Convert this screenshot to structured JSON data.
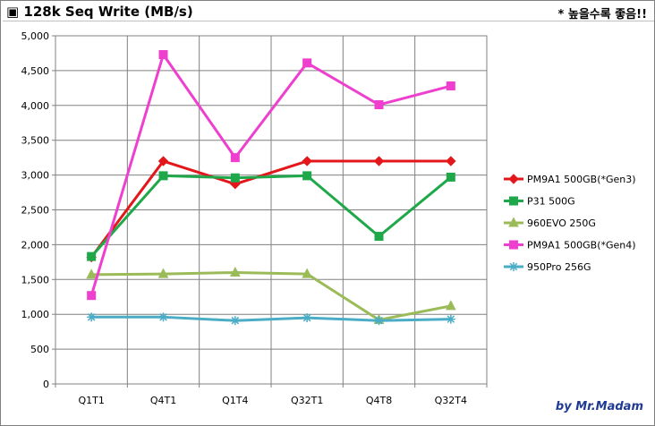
{
  "header": {
    "title": "▣ 128k Seq Write (MB/s)",
    "note": "* 높을수록 좋음!!"
  },
  "footer": {
    "credit": "by Mr.Madam"
  },
  "chart_data": {
    "type": "line",
    "title": "128k Seq Write (MB/s)",
    "xlabel": "",
    "ylabel": "",
    "categories": [
      "Q1T1",
      "Q4T1",
      "Q1T4",
      "Q32T1",
      "Q4T8",
      "Q32T4"
    ],
    "ylim": [
      0,
      5000
    ],
    "yticks": [
      0,
      500,
      1000,
      1500,
      2000,
      2500,
      3000,
      3500,
      4000,
      4500,
      5000
    ],
    "ytick_labels": [
      "0",
      "500",
      "1,000",
      "1,500",
      "2,000",
      "2,500",
      "3,000",
      "3,500",
      "4,000",
      "4,500",
      "5,000"
    ],
    "grid": true,
    "legend_position": "right",
    "series": [
      {
        "name": "PM9A1 500GB(*Gen3)",
        "values": [
          1820,
          3200,
          2870,
          3200,
          3200,
          3200
        ],
        "color": "#e3171b",
        "marker": "diamond"
      },
      {
        "name": "P31 500G",
        "values": [
          1830,
          2990,
          2960,
          2990,
          2120,
          2970
        ],
        "color": "#1fa84a",
        "marker": "square"
      },
      {
        "name": "960EVO 250G",
        "values": [
          1570,
          1580,
          1600,
          1580,
          920,
          1120
        ],
        "color": "#9bbb59",
        "marker": "triangle"
      },
      {
        "name": "PM9A1 500GB(*Gen4)",
        "values": [
          1270,
          4730,
          3250,
          4610,
          4010,
          4280
        ],
        "color": "#ee3fce",
        "marker": "square"
      },
      {
        "name": "950Pro 256G",
        "values": [
          960,
          960,
          910,
          950,
          910,
          930
        ],
        "color": "#4bacc6",
        "marker": "star"
      }
    ]
  }
}
